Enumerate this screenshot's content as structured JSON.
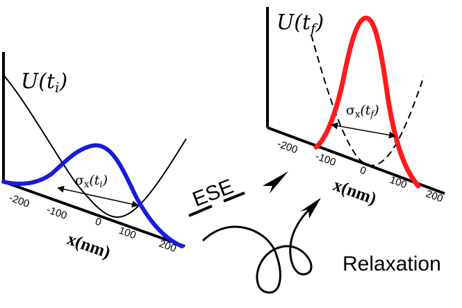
{
  "left_panel": {
    "potential_label": "U(t",
    "potential_sub": "i",
    "potential_close": ")",
    "sigma_label": "σ",
    "sigma_sub": "x",
    "sigma_arg": "(t",
    "sigma_arg_sub": "i",
    "sigma_close": ")",
    "axis_title": "x(nm)",
    "ticks": [
      "-200",
      "-100",
      "0",
      "100",
      "200"
    ],
    "curve_color": "#1a1adb"
  },
  "right_panel": {
    "potential_label": "U(t",
    "potential_sub": "f",
    "potential_close": ")",
    "sigma_label": "σ",
    "sigma_sub": "x",
    "sigma_arg": "(t",
    "sigma_arg_sub": "f",
    "sigma_close": ")",
    "axis_title": "x(nm)",
    "ticks": [
      "-200",
      "-100",
      "0",
      "100",
      "200"
    ],
    "curve_color": "#ff1a1a"
  },
  "transitions": {
    "ese_label": "ESE",
    "relaxation_label": "Relaxation"
  }
}
